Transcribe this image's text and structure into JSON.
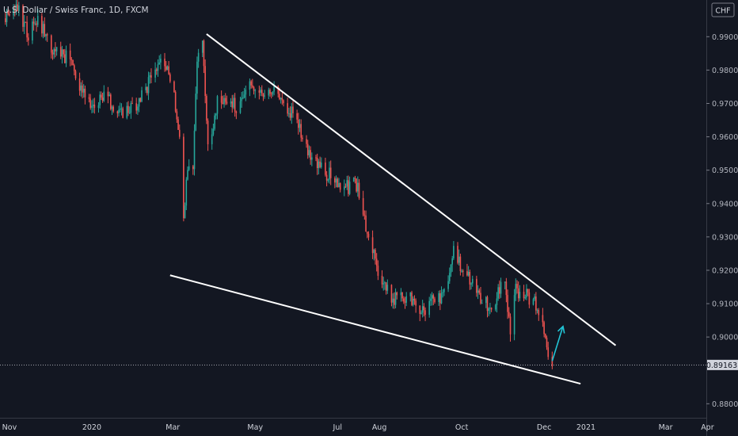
{
  "chart_data": {
    "type": "candlestick",
    "title": "U.S. Dollar / Swiss Franc, 1D, FXCM",
    "currency": "CHF",
    "ylim": [
      0.8758,
      1.001
    ],
    "y_ticks": [
      "0.99000",
      "0.98000",
      "0.97000",
      "0.96000",
      "0.95000",
      "0.94000",
      "0.93000",
      "0.92000",
      "0.91000",
      "0.90000",
      "0.88000"
    ],
    "y_tick_values": [
      0.99,
      0.98,
      0.97,
      0.96,
      0.95,
      0.94,
      0.93,
      0.92,
      0.91,
      0.9,
      0.88
    ],
    "x_ticks": [
      "Nov",
      "2020",
      "Mar",
      "May",
      "Jul",
      "Aug",
      "Oct",
      "Dec",
      "2021",
      "Mar",
      "Apr"
    ],
    "x_tick_dates": [
      "2019-11-01",
      "2020-01-01",
      "2020-03-01",
      "2020-05-01",
      "2020-07-01",
      "2020-08-01",
      "2020-10-01",
      "2020-12-01",
      "2021-01-01",
      "2021-03-01",
      "2021-04-01"
    ],
    "last_price": 0.89163,
    "last_price_label": "0.89163",
    "up_color": "#26a69a",
    "down_color": "#ef5350",
    "series_path": [
      [
        "2019-10-29",
        0.9955
      ],
      [
        "2019-11-08",
        0.9985
      ],
      [
        "2019-11-15",
        0.9905
      ],
      [
        "2019-11-22",
        0.995
      ],
      [
        "2019-12-03",
        0.9858
      ],
      [
        "2019-12-13",
        0.9843
      ],
      [
        "2019-12-20",
        0.979
      ],
      [
        "2019-12-31",
        0.968
      ],
      [
        "2020-01-10",
        0.9735
      ],
      [
        "2020-01-20",
        0.9665
      ],
      [
        "2020-02-01",
        0.9685
      ],
      [
        "2020-02-10",
        0.9745
      ],
      [
        "2020-02-20",
        0.983
      ],
      [
        "2020-02-24",
        0.983
      ],
      [
        "2020-03-02",
        0.9715
      ],
      [
        "2020-03-06",
        0.958
      ],
      [
        "2020-03-09",
        0.935
      ],
      [
        "2020-03-11",
        0.947
      ],
      [
        "2020-03-16",
        0.9515
      ],
      [
        "2020-03-19",
        0.9838
      ],
      [
        "2020-03-23",
        0.9885
      ],
      [
        "2020-03-27",
        0.9555
      ],
      [
        "2020-04-03",
        0.971
      ],
      [
        "2020-04-09",
        0.9725
      ],
      [
        "2020-04-17",
        0.9695
      ],
      [
        "2020-04-29",
        0.9765
      ],
      [
        "2020-05-08",
        0.971
      ],
      [
        "2020-05-15",
        0.9735
      ],
      [
        "2020-05-29",
        0.9668
      ],
      [
        "2020-06-08",
        0.9562
      ],
      [
        "2020-06-15",
        0.9515
      ],
      [
        "2020-06-24",
        0.949
      ],
      [
        "2020-07-06",
        0.9445
      ],
      [
        "2020-07-15",
        0.9458
      ],
      [
        "2020-07-24",
        0.9295
      ],
      [
        "2020-08-03",
        0.9155
      ],
      [
        "2020-08-10",
        0.912
      ],
      [
        "2020-08-24",
        0.9112
      ],
      [
        "2020-09-01",
        0.9075
      ],
      [
        "2020-09-10",
        0.9112
      ],
      [
        "2020-09-17",
        0.9115
      ],
      [
        "2020-09-25",
        0.9262
      ],
      [
        "2020-10-02",
        0.9201
      ],
      [
        "2020-10-14",
        0.9128
      ],
      [
        "2020-10-23",
        0.9085
      ],
      [
        "2020-11-02",
        0.9173
      ],
      [
        "2020-11-06",
        0.9006
      ],
      [
        "2020-11-10",
        0.9145
      ],
      [
        "2020-11-20",
        0.912
      ],
      [
        "2020-11-27",
        0.9084
      ],
      [
        "2020-12-04",
        0.8945
      ],
      [
        "2020-12-07",
        0.8912
      ]
    ],
    "annotations": {
      "resistance_line": [
        [
          "2020-03-26",
          0.9908
        ],
        [
          "2021-01-23",
          0.8975
        ]
      ],
      "support_line": [
        [
          "2020-02-28",
          0.9185
        ],
        [
          "2020-12-28",
          0.886
        ]
      ],
      "projection_arrow": [
        [
          "2020-12-07",
          0.8928
        ],
        [
          "2020-12-15",
          0.9032
        ]
      ]
    },
    "grid": false,
    "legend": "none"
  }
}
